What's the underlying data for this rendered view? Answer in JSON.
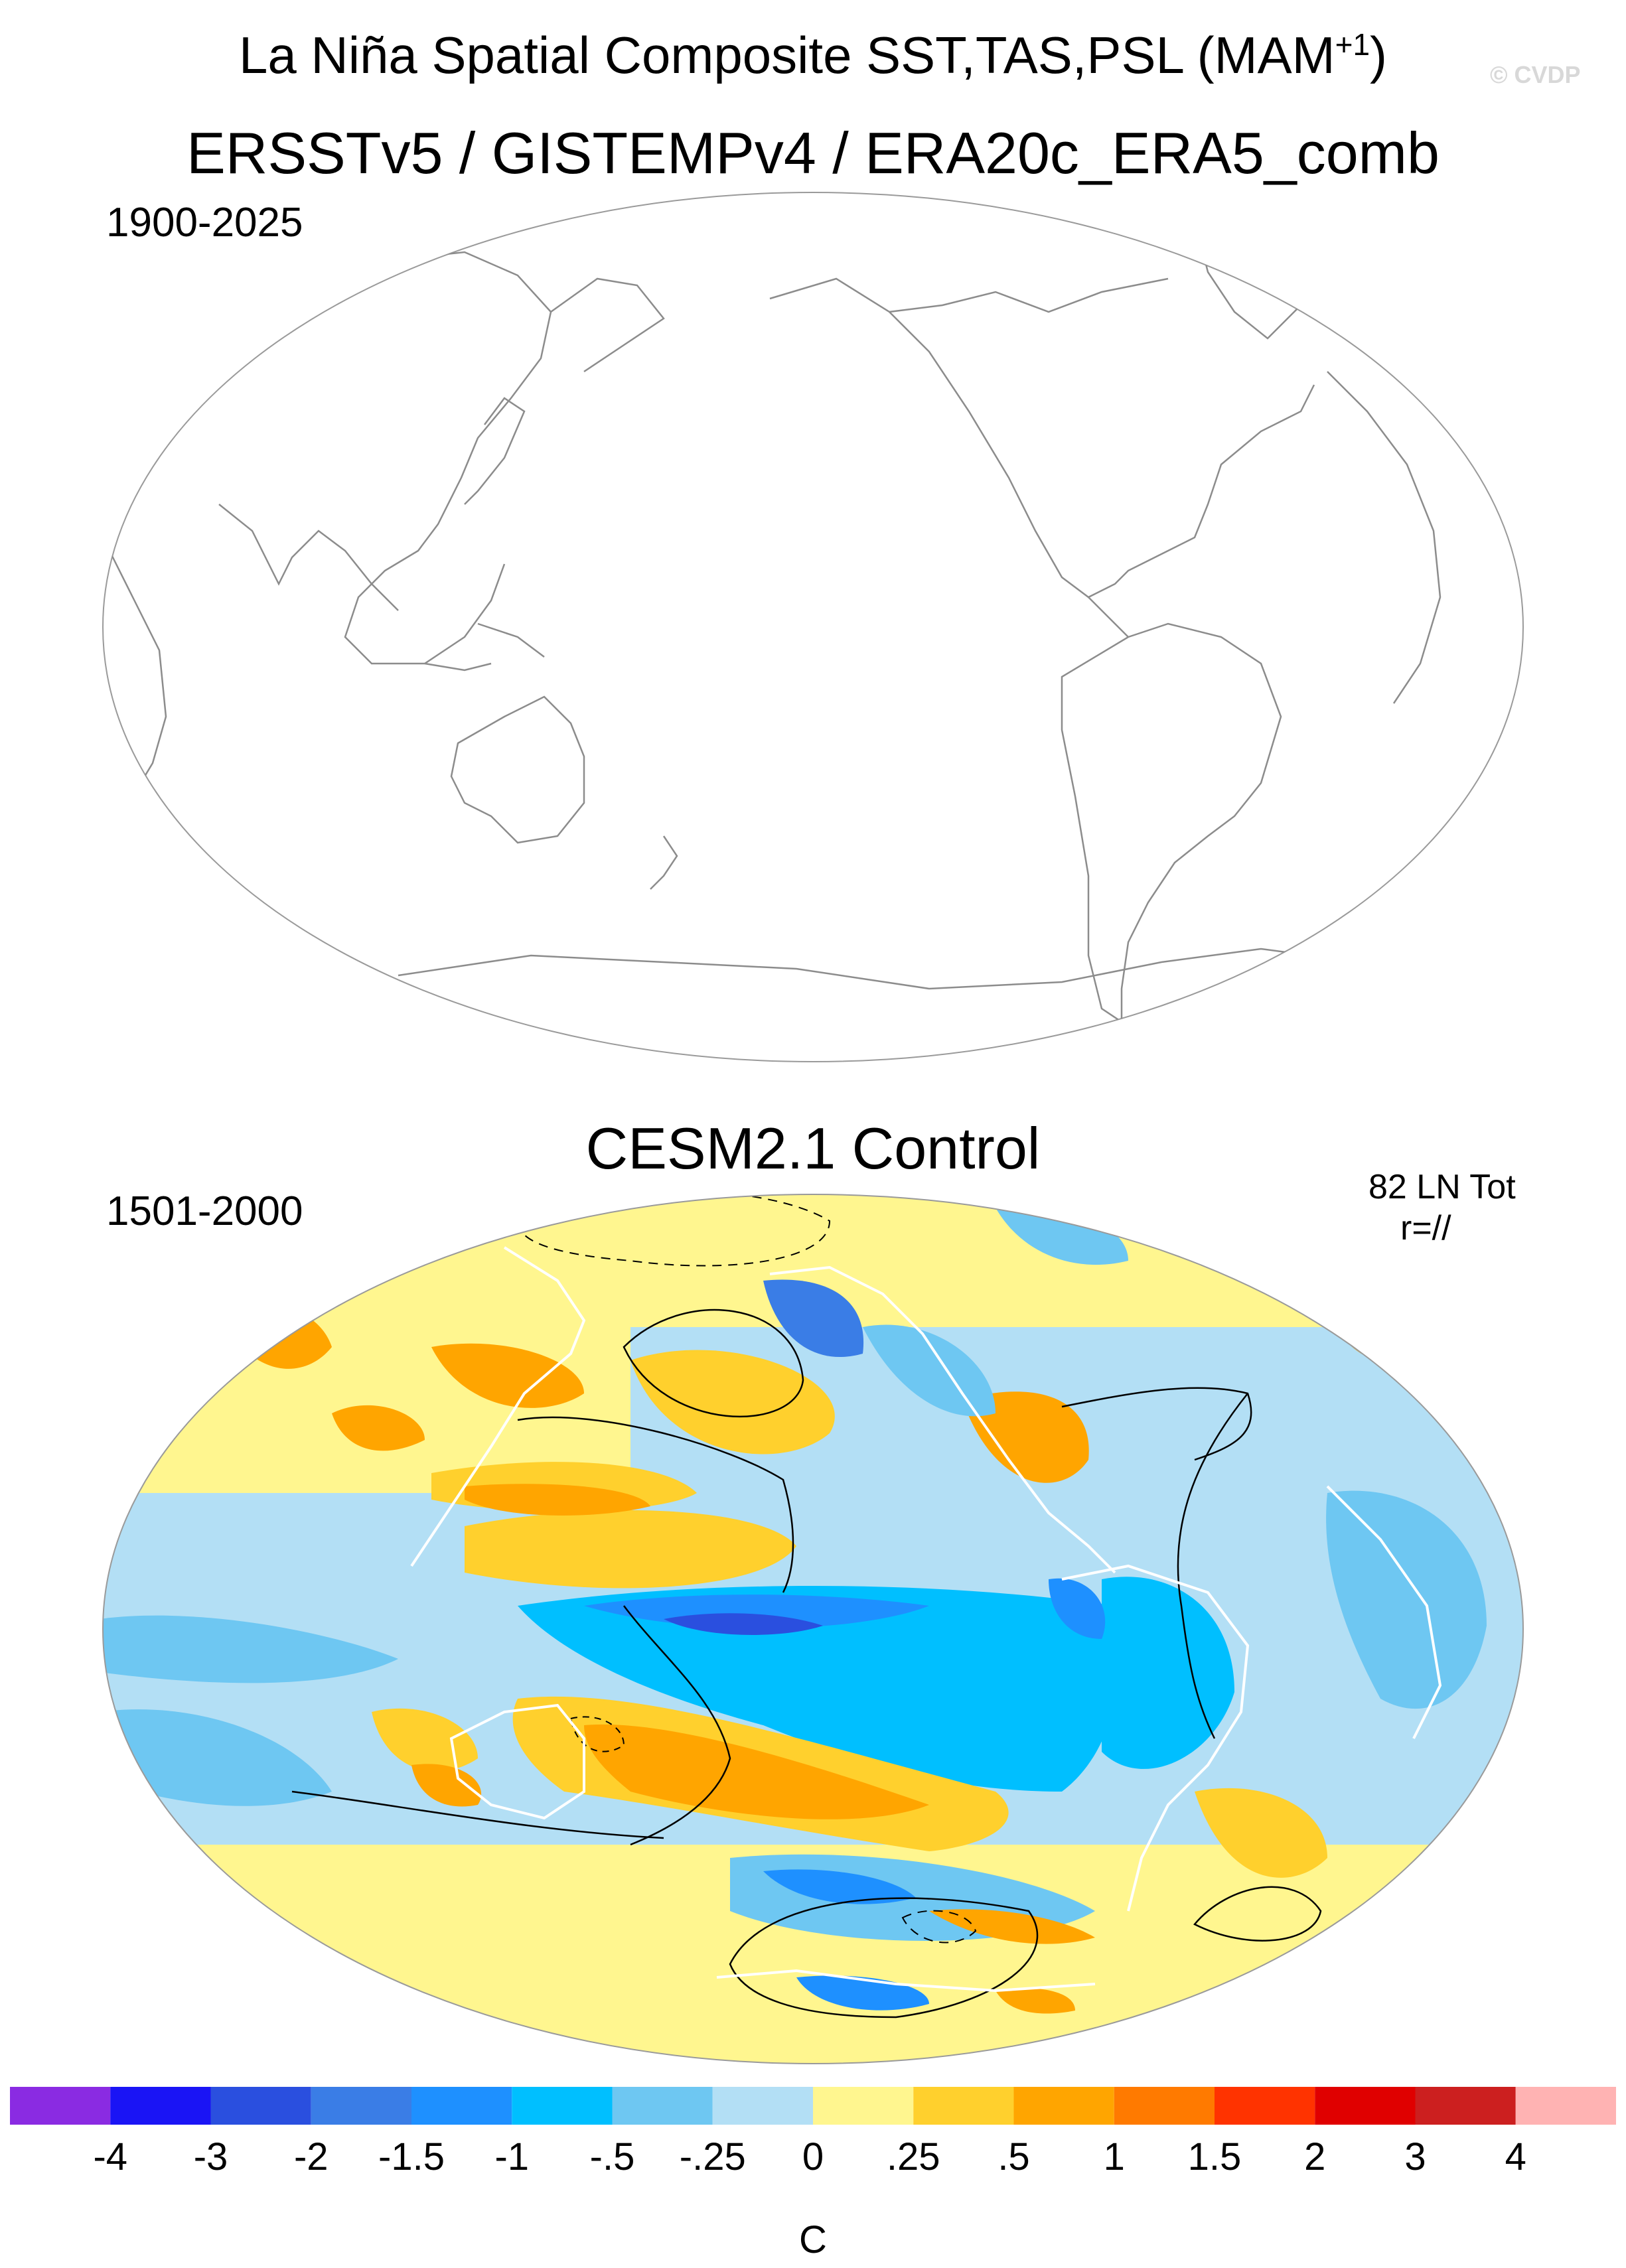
{
  "header": {
    "title_main": "La Niña Spatial Composite SST,TAS,PSL (MAM",
    "title_sup": "+1",
    "title_close": ")",
    "watermark": "© CVDP"
  },
  "panel_obs": {
    "title": "ERSSTv5 / GISTEMPv4 / ERA20c_ERA5_comb",
    "period": "1900-2025"
  },
  "panel_model": {
    "title": "CESM2.1 Control",
    "period": "1501-2000",
    "count_label": "82 LN Tot",
    "corr_label": "r=//"
  },
  "colorbar": {
    "unit": "C",
    "labels": [
      "-4",
      "-3",
      "-2",
      "-1.5",
      "-1",
      "-.5",
      "-.25",
      "0",
      ".25",
      ".5",
      "1",
      "1.5",
      "2",
      "3",
      "4"
    ],
    "colors": [
      "#8a2be2",
      "#1a14f5",
      "#2a4fdf",
      "#3a7de6",
      "#1e90ff",
      "#00bfff",
      "#6ec7f2",
      "#b3dff5",
      "#fff68f",
      "#ffd02d",
      "#ffa500",
      "#ff7a00",
      "#ff3300",
      "#e00000",
      "#cc1f1f",
      "#ffb3b3"
    ]
  }
}
